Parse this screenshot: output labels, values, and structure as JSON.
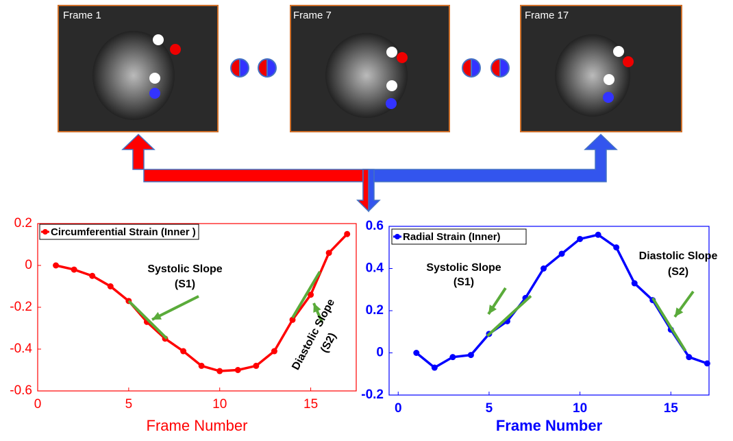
{
  "frames": [
    "Frame 1",
    "Frame 7",
    "Frame 17"
  ],
  "chart_data": [
    {
      "type": "line",
      "x_label": "Frame Number",
      "series": [
        {
          "name": "Circumferential Strain (Inner )",
          "color": "#ff0000",
          "x": [
            1,
            2,
            3,
            4,
            5,
            6,
            7,
            8,
            9,
            10,
            11,
            12,
            13,
            14,
            15,
            16,
            17
          ],
          "values": [
            0.0,
            -0.02,
            -0.05,
            -0.1,
            -0.17,
            -0.27,
            -0.35,
            -0.41,
            -0.48,
            -0.505,
            -0.5,
            -0.48,
            -0.41,
            -0.26,
            -0.14,
            0.06,
            0.15
          ]
        }
      ],
      "slope_lines": [
        {
          "x": [
            5,
            7.1
          ],
          "y": [
            -0.17,
            -0.35
          ]
        },
        {
          "x": [
            14,
            15.5
          ],
          "y": [
            -0.25,
            -0.03
          ]
        }
      ],
      "annotations": [
        "Systolic Slope",
        "(S1)",
        "Diastolic Slope",
        "(S2)"
      ],
      "xlim": [
        0,
        17.5
      ],
      "xticks": [
        0,
        5,
        10,
        15
      ],
      "ylim": [
        -0.6,
        0.2
      ],
      "yticks": [
        -0.6,
        -0.4,
        -0.2,
        0,
        0.2
      ]
    },
    {
      "type": "line",
      "x_label": "Frame Number",
      "series": [
        {
          "name": "Radial Strain (Inner)",
          "color": "#0000ff",
          "x": [
            1,
            2,
            3,
            4,
            5,
            6,
            7,
            8,
            9,
            10,
            11,
            12,
            13,
            14,
            15,
            16,
            17
          ],
          "values": [
            0.0,
            -0.07,
            -0.02,
            -0.01,
            0.09,
            0.15,
            0.26,
            0.4,
            0.47,
            0.54,
            0.56,
            0.5,
            0.33,
            0.25,
            0.11,
            -0.02,
            -0.05
          ]
        }
      ],
      "slope_lines": [
        {
          "x": [
            4.9,
            7.3
          ],
          "y": [
            0.08,
            0.27
          ]
        },
        {
          "x": [
            14,
            15.8
          ],
          "y": [
            0.26,
            0.01
          ]
        }
      ],
      "annotations": [
        "Systolic Slope",
        "(S1)",
        "Diastolic Slope",
        "(S2)"
      ],
      "xlim": [
        -0.5,
        17.1
      ],
      "xticks": [
        0,
        5,
        10,
        15
      ],
      "ylim": [
        -0.2,
        0.6
      ],
      "yticks": [
        -0.2,
        0,
        0.2,
        0.4,
        0.6
      ]
    }
  ]
}
